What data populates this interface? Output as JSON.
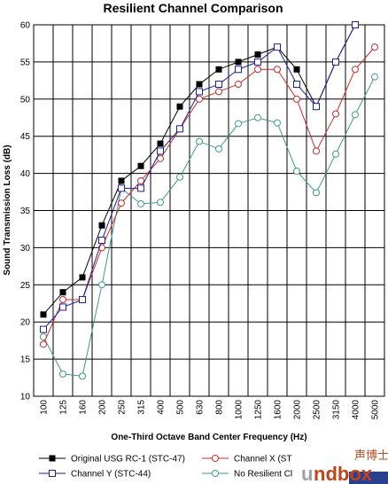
{
  "chart_data": {
    "type": "line",
    "title": "Resilient Channel Comparison",
    "xlabel": "One-Third Octave Band Center Frequency (Hz)",
    "ylabel": "Sound Transmission Loss (dB)",
    "ylim": [
      10,
      60
    ],
    "yticks": [
      10,
      15,
      20,
      25,
      30,
      35,
      40,
      45,
      50,
      55,
      60
    ],
    "grid": true,
    "legend_placement": "bottom",
    "categories": [
      "100",
      "125",
      "160",
      "200",
      "250",
      "315",
      "400",
      "500",
      "630",
      "800",
      "1000",
      "1250",
      "1600",
      "2000",
      "2500",
      "3150",
      "4000",
      "5000"
    ],
    "series": [
      {
        "name": "Original USG RC-1 (STC-47)",
        "color": "#000000",
        "marker": "filled-square",
        "values": [
          21,
          24,
          26,
          33,
          39,
          41,
          44,
          49,
          52,
          54,
          55,
          56,
          57,
          54,
          49,
          55,
          60,
          null
        ]
      },
      {
        "name": "Channel X (ST",
        "color": "#cc2a2a",
        "marker": "open-circle",
        "values": [
          17,
          23,
          23,
          30,
          36,
          39,
          42,
          46,
          50,
          51,
          52,
          54,
          54,
          50,
          43,
          48,
          54,
          57
        ]
      },
      {
        "name": "Channel Y (STC-44)",
        "color": "#1f1f9a",
        "marker": "open-square",
        "values": [
          19,
          22,
          23,
          31,
          38,
          38,
          43,
          46,
          51,
          52,
          54,
          55,
          57,
          52,
          49,
          55,
          60,
          null
        ]
      },
      {
        "name": "No Resilient Cl",
        "color": "#3f9a88",
        "marker": "open-circle",
        "values": [
          18,
          13,
          12.7,
          25,
          38,
          35.9,
          36.1,
          39.5,
          44.3,
          43.3,
          46.7,
          47.5,
          46.8,
          40.3,
          37.4,
          42.6,
          47.9,
          53
        ]
      }
    ]
  },
  "watermark": {
    "cn_text": "声博士",
    "brand_text": "Soundbox",
    "brand_main": "ndbox",
    "brand_lead": "u"
  }
}
